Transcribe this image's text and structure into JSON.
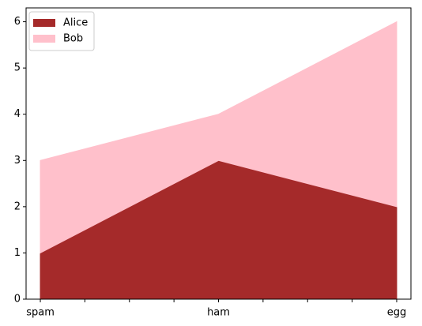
{
  "chart_data": {
    "type": "stacked-area",
    "categories": [
      "spam",
      "ham",
      "egg"
    ],
    "series": [
      {
        "name": "Alice",
        "color": "#a52a2a",
        "values": [
          1,
          3,
          2
        ]
      },
      {
        "name": "Bob",
        "color": "#ffc0cb",
        "values": [
          2,
          1,
          4
        ]
      }
    ],
    "ylim": [
      0,
      6.3
    ],
    "yticks": [
      0,
      1,
      2,
      3,
      4,
      5,
      6
    ],
    "legend": "upper left"
  }
}
